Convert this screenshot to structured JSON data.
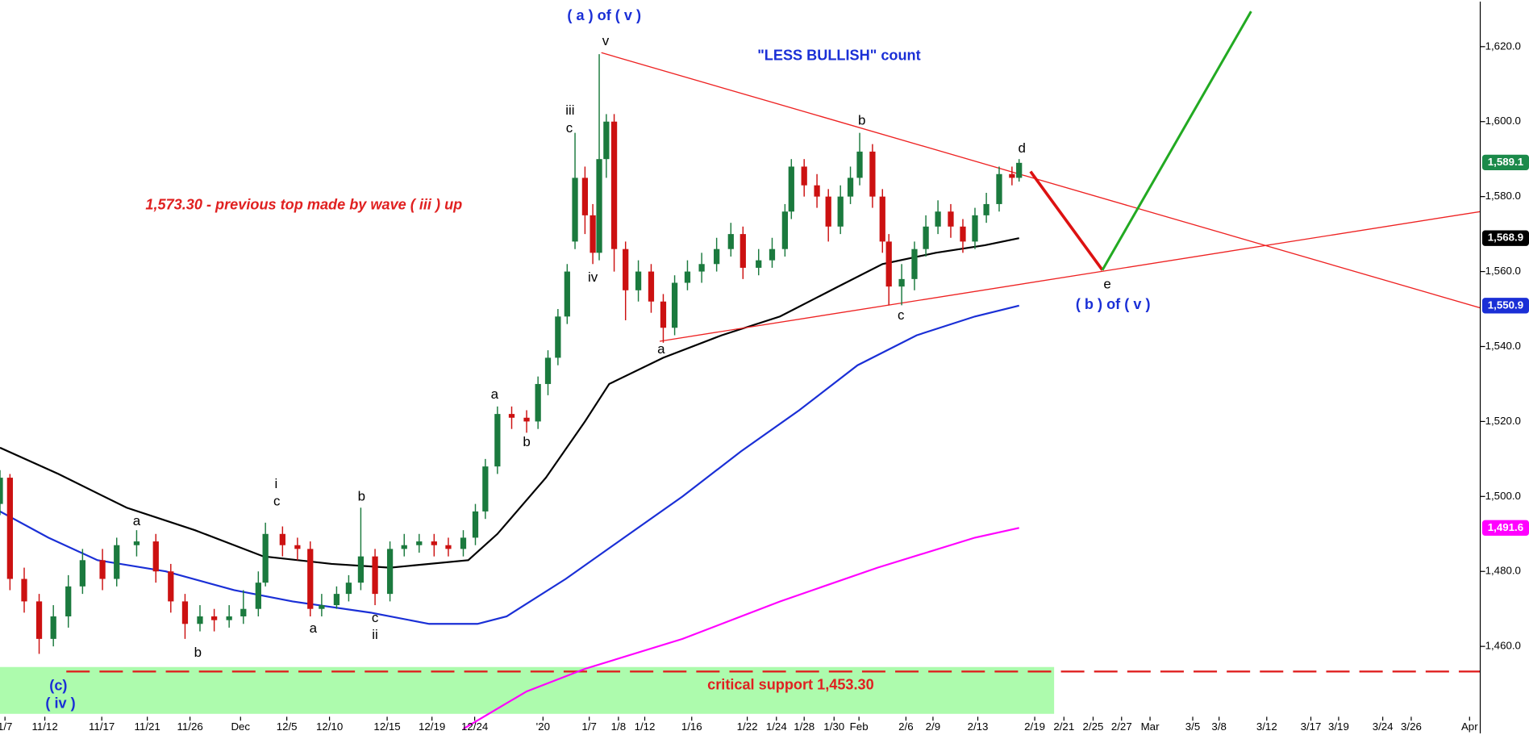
{
  "chart_data": {
    "type": "candlestick",
    "xlim": [
      0,
      208
    ],
    "ylim": [
      1436.8,
      1632.0
    ],
    "xticks": [
      {
        "value": 0.7,
        "label": "1/7"
      },
      {
        "value": 6.3,
        "label": "11/12"
      },
      {
        "value": 14.3,
        "label": "11/17"
      },
      {
        "value": 20.7,
        "label": "11/21"
      },
      {
        "value": 26.7,
        "label": "11/26"
      },
      {
        "value": 33.8,
        "label": "Dec"
      },
      {
        "value": 40.3,
        "label": "12/5"
      },
      {
        "value": 46.3,
        "label": "12/10"
      },
      {
        "value": 54.4,
        "label": "12/15"
      },
      {
        "value": 60.7,
        "label": "12/19"
      },
      {
        "value": 66.7,
        "label": "12/24"
      },
      {
        "value": 76.3,
        "label": "'20"
      },
      {
        "value": 82.8,
        "label": "1/7"
      },
      {
        "value": 86.9,
        "label": "1/8"
      },
      {
        "value": 90.6,
        "label": "1/12"
      },
      {
        "value": 97.2,
        "label": "1/16"
      },
      {
        "value": 105,
        "label": "1/22"
      },
      {
        "value": 109.1,
        "label": "1/24"
      },
      {
        "value": 113,
        "label": "1/28"
      },
      {
        "value": 117.2,
        "label": "1/30"
      },
      {
        "value": 120.7,
        "label": "Feb"
      },
      {
        "value": 127.3,
        "label": "2/6"
      },
      {
        "value": 131.1,
        "label": "2/9"
      },
      {
        "value": 137.4,
        "label": "2/13"
      },
      {
        "value": 145.4,
        "label": "2/19"
      },
      {
        "value": 149.5,
        "label": "2/21"
      },
      {
        "value": 153.6,
        "label": "2/25"
      },
      {
        "value": 157.6,
        "label": "2/27"
      },
      {
        "value": 161.6,
        "label": "Mar"
      },
      {
        "value": 167.6,
        "label": "3/5"
      },
      {
        "value": 171.3,
        "label": "3/8"
      },
      {
        "value": 178,
        "label": "3/12"
      },
      {
        "value": 184.2,
        "label": "3/17"
      },
      {
        "value": 188.1,
        "label": "3/19"
      },
      {
        "value": 194.3,
        "label": "3/24"
      },
      {
        "value": 198.3,
        "label": "3/26"
      },
      {
        "value": 206.5,
        "label": "Apr"
      }
    ],
    "yticks": [
      {
        "value": 1460,
        "label": "1,460.0"
      },
      {
        "value": 1480,
        "label": "1,480.0"
      },
      {
        "value": 1500,
        "label": "1,500.0"
      },
      {
        "value": 1520,
        "label": "1,520.0"
      },
      {
        "value": 1540,
        "label": "1,540.0"
      },
      {
        "value": 1560,
        "label": "1,560.0"
      },
      {
        "value": 1580,
        "label": "1,580.0"
      },
      {
        "value": 1600,
        "label": "1,600.0"
      },
      {
        "value": 1620,
        "label": "1,620.0"
      }
    ],
    "up_color": "#1b7a3e",
    "down_color": "#cc1111",
    "x": [
      0.0,
      1.4,
      3.4,
      5.5,
      7.5,
      9.6,
      11.6,
      14.4,
      16.4,
      19.2,
      21.9,
      24.0,
      26.0,
      28.1,
      30.1,
      32.2,
      34.2,
      36.3,
      37.3,
      39.7,
      41.8,
      43.6,
      45.2,
      47.3,
      49.0,
      50.7,
      52.7,
      54.8,
      56.8,
      58.9,
      61.0,
      63.0,
      65.1,
      66.8,
      68.2,
      69.9,
      71.9,
      74.0,
      75.6,
      77.0,
      78.4,
      79.7,
      80.8,
      82.2,
      83.3,
      84.2,
      85.2,
      86.3,
      87.9,
      89.7,
      91.5,
      93.2,
      94.8,
      96.6,
      98.6,
      100.7,
      102.7,
      104.4,
      106.6,
      108.5,
      110.3,
      111.2,
      113.0,
      114.8,
      116.4,
      118.1,
      119.5,
      120.8,
      122.6,
      124.0,
      124.9,
      126.7,
      128.5,
      130.1,
      131.8,
      133.6,
      135.3,
      137.0,
      138.6,
      140.4,
      142.2,
      143.2
    ],
    "open": [
      1498,
      1505,
      1478,
      1472,
      1462,
      1468,
      1476,
      1483,
      1478,
      1487,
      1488,
      1480,
      1472,
      1466,
      1468,
      1467,
      1468,
      1470,
      1477,
      1490,
      1487,
      1486,
      1470,
      1471,
      1474,
      1477,
      1484,
      1474,
      1486,
      1487,
      1488,
      1487,
      1486,
      1489,
      1496,
      1508,
      1522,
      1521,
      1520,
      1530,
      1537,
      1548,
      1568,
      1585,
      1575,
      1565,
      1590,
      1600,
      1566,
      1555,
      1560,
      1552,
      1545,
      1557,
      1560,
      1562,
      1566,
      1570,
      1561,
      1563,
      1566,
      1576,
      1588,
      1583,
      1580,
      1572,
      1580,
      1585,
      1592,
      1580,
      1568,
      1556,
      1558,
      1566,
      1572,
      1576,
      1572,
      1568,
      1575,
      1578,
      1586,
      1585
    ],
    "high": [
      1507,
      1506,
      1481,
      1474,
      1471,
      1479,
      1486,
      1486,
      1489,
      1491,
      1490,
      1482,
      1474,
      1471,
      1470,
      1471,
      1475,
      1480,
      1493,
      1492,
      1489,
      1488,
      1474,
      1476,
      1479,
      1497,
      1486,
      1488,
      1490,
      1490,
      1490,
      1489,
      1491,
      1498,
      1510,
      1524,
      1524,
      1523,
      1532,
      1539,
      1550,
      1562,
      1597,
      1588,
      1578,
      1618,
      1602,
      1602,
      1568,
      1563,
      1562,
      1554,
      1559,
      1563,
      1565,
      1569,
      1573,
      1572,
      1566,
      1569,
      1578,
      1590,
      1590,
      1586,
      1582,
      1583,
      1588,
      1597,
      1594,
      1582,
      1570,
      1562,
      1568,
      1575,
      1579,
      1578,
      1574,
      1577,
      1581,
      1588,
      1588,
      1590
    ],
    "low": [
      1495,
      1475,
      1469,
      1458,
      1460,
      1465,
      1474,
      1475,
      1476,
      1484,
      1477,
      1469,
      1462,
      1464,
      1464,
      1465,
      1466,
      1468,
      1476,
      1484,
      1483,
      1468,
      1468,
      1470,
      1472,
      1475,
      1471,
      1472,
      1484,
      1485,
      1484,
      1484,
      1484,
      1487,
      1494,
      1506,
      1518,
      1517,
      1518,
      1527,
      1535,
      1546,
      1566,
      1570,
      1562,
      1563,
      1585,
      1560,
      1547,
      1552,
      1549,
      1541,
      1543,
      1555,
      1557,
      1560,
      1564,
      1558,
      1559,
      1561,
      1564,
      1574,
      1580,
      1577,
      1568,
      1570,
      1578,
      1583,
      1577,
      1565,
      1551,
      1551,
      1555,
      1564,
      1570,
      1569,
      1565,
      1566,
      1573,
      1576,
      1583,
      1584
    ],
    "close": [
      1505,
      1478,
      1472,
      1462,
      1468,
      1476,
      1483,
      1478,
      1487,
      1488,
      1480,
      1472,
      1466,
      1468,
      1467,
      1468,
      1470,
      1477,
      1490,
      1487,
      1486,
      1470,
      1471,
      1474,
      1477,
      1484,
      1474,
      1486,
      1487,
      1488,
      1487,
      1486,
      1489,
      1496,
      1508,
      1522,
      1521,
      1520,
      1530,
      1537,
      1548,
      1560,
      1585,
      1575,
      1565,
      1590,
      1600,
      1566,
      1555,
      1560,
      1552,
      1545,
      1557,
      1560,
      1562,
      1566,
      1570,
      1561,
      1563,
      1566,
      1576,
      1588,
      1583,
      1580,
      1572,
      1580,
      1585,
      1592,
      1580,
      1568,
      1556,
      1558,
      1566,
      1572,
      1576,
      1572,
      1568,
      1575,
      1578,
      1586,
      1585,
      1589
    ],
    "lines": [
      {
        "color": "#000000",
        "width": 1.8,
        "x": [
          0,
          8.2,
          17.8,
          27.4,
          37.0,
          46.6,
          54.8,
          65.8,
          69.9,
          76.7,
          82.2,
          85.6,
          93.2,
          101.4,
          109.6,
          117.8,
          124.0,
          131.5,
          138.4,
          143.2
        ],
        "values": [
          1513,
          1506,
          1497,
          1491,
          1484,
          1482,
          1481,
          1483,
          1490,
          1505,
          1520,
          1530,
          1537,
          1543,
          1548,
          1556,
          1562,
          1565,
          1567,
          1568.9
        ]
      },
      {
        "color": "#1a2fd6",
        "width": 1.8,
        "x": [
          0,
          6.8,
          13.7,
          23.3,
          32.9,
          41.1,
          52.1,
          60.3,
          67.1,
          71.2,
          79.5,
          87.7,
          95.9,
          104.1,
          112.3,
          120.5,
          128.8,
          137.0,
          143.2
        ],
        "values": [
          1496,
          1489,
          1483,
          1480,
          1475,
          1472,
          1469,
          1466,
          1466,
          1468,
          1478,
          1489,
          1500,
          1512,
          1523,
          1535,
          1543,
          1548,
          1550.9
        ]
      },
      {
        "color": "#ff00ff",
        "width": 1.8,
        "x": [
          65.1,
          74.0,
          82.2,
          95.9,
          109.6,
          123.3,
          137.0,
          143.2
        ],
        "values": [
          1438,
          1448,
          1454,
          1462,
          1472,
          1481,
          1489,
          1491.6
        ]
      },
      {
        "color": "#ee2222",
        "width": 1.1,
        "x": [
          84.5,
          208
        ],
        "values": [
          1618.4,
          1550.3
        ]
      },
      {
        "color": "#ee2222",
        "width": 1.1,
        "x": [
          92.7,
          208
        ],
        "values": [
          1541.4,
          1576.0
        ]
      },
      {
        "color": "#dd1111",
        "width": 3,
        "x": [
          144.8,
          154.9
        ],
        "values": [
          1586.7,
          1560.4
        ]
      },
      {
        "color": "#22aa22",
        "width": 2.5,
        "x": [
          154.9,
          175.8
        ],
        "values": [
          1560.4,
          1629.4
        ]
      }
    ],
    "support": {
      "value": 1453.3,
      "color": "#e02020"
    },
    "price_labels": [
      {
        "value": 1589.1,
        "label": "1,589.1",
        "color": "#1b8a4a"
      },
      {
        "value": 1568.9,
        "label": "1,568.9",
        "color": "#000000"
      },
      {
        "value": 1550.9,
        "label": "1,550.9",
        "color": "#1a2fd6"
      },
      {
        "value": 1491.6,
        "label": "1,491.6",
        "color": "#ff00ff"
      }
    ],
    "annotations": [
      {
        "text": "( a ) of ( v )",
        "x": 84.9,
        "y": 1628.1,
        "color": "#1a2fd6"
      },
      {
        "text": "v",
        "x": 85.1,
        "y": 1621.3,
        "color": "#000000"
      },
      {
        "text": "\"LESS BULLISH\" count",
        "x": 117.9,
        "y": 1617.4,
        "color": "#1a2fd6"
      },
      {
        "text": "iii",
        "x": 80.1,
        "y": 1602.8,
        "color": "#000000"
      },
      {
        "text": "c",
        "x": 80.0,
        "y": 1598.1,
        "color": "#000000"
      },
      {
        "text": "iv",
        "x": 83.3,
        "y": 1558.3,
        "color": "#000000"
      },
      {
        "text": "b",
        "x": 121.1,
        "y": 1600.2,
        "color": "#000000"
      },
      {
        "text": "d",
        "x": 143.6,
        "y": 1592.7,
        "color": "#000000"
      },
      {
        "text": "e",
        "x": 155.6,
        "y": 1556.5,
        "color": "#000000"
      },
      {
        "text": "( b ) of ( v )",
        "x": 156.4,
        "y": 1551.0,
        "color": "#1a2fd6"
      },
      {
        "text": "c",
        "x": 126.6,
        "y": 1548.2,
        "color": "#000000"
      },
      {
        "text": "a",
        "x": 92.9,
        "y": 1539.1,
        "color": "#000000"
      },
      {
        "text": "a",
        "x": 69.5,
        "y": 1527.1,
        "color": "#000000"
      },
      {
        "text": "b",
        "x": 74.0,
        "y": 1514.4,
        "color": "#000000"
      },
      {
        "text": "i",
        "x": 38.8,
        "y": 1503.2,
        "color": "#000000"
      },
      {
        "text": "c",
        "x": 38.9,
        "y": 1498.5,
        "color": "#000000"
      },
      {
        "text": "b",
        "x": 50.8,
        "y": 1499.8,
        "color": "#000000"
      },
      {
        "text": "a",
        "x": 19.2,
        "y": 1493.3,
        "color": "#000000"
      },
      {
        "text": "b",
        "x": 27.8,
        "y": 1458.2,
        "color": "#000000"
      },
      {
        "text": "a",
        "x": 44.0,
        "y": 1464.7,
        "color": "#000000"
      },
      {
        "text": "c",
        "x": 52.7,
        "y": 1467.5,
        "color": "#000000"
      },
      {
        "text": "ii",
        "x": 52.7,
        "y": 1462.9,
        "color": "#000000"
      },
      {
        "text": "(c)",
        "x": 8.2,
        "y": 1449.3,
        "color": "#1a2fd6"
      },
      {
        "text": "( iv )",
        "x": 8.5,
        "y": 1444.6,
        "color": "#1a2fd6"
      },
      {
        "text": "1,573.30 - previous top made by wave ( iii ) up",
        "x": 42.7,
        "y": 1577.6,
        "color": "#e02020",
        "italic": true
      },
      {
        "text": "critical support 1,453.30",
        "x": 111.1,
        "y": 1449.6,
        "color": "#e02020"
      }
    ]
  }
}
